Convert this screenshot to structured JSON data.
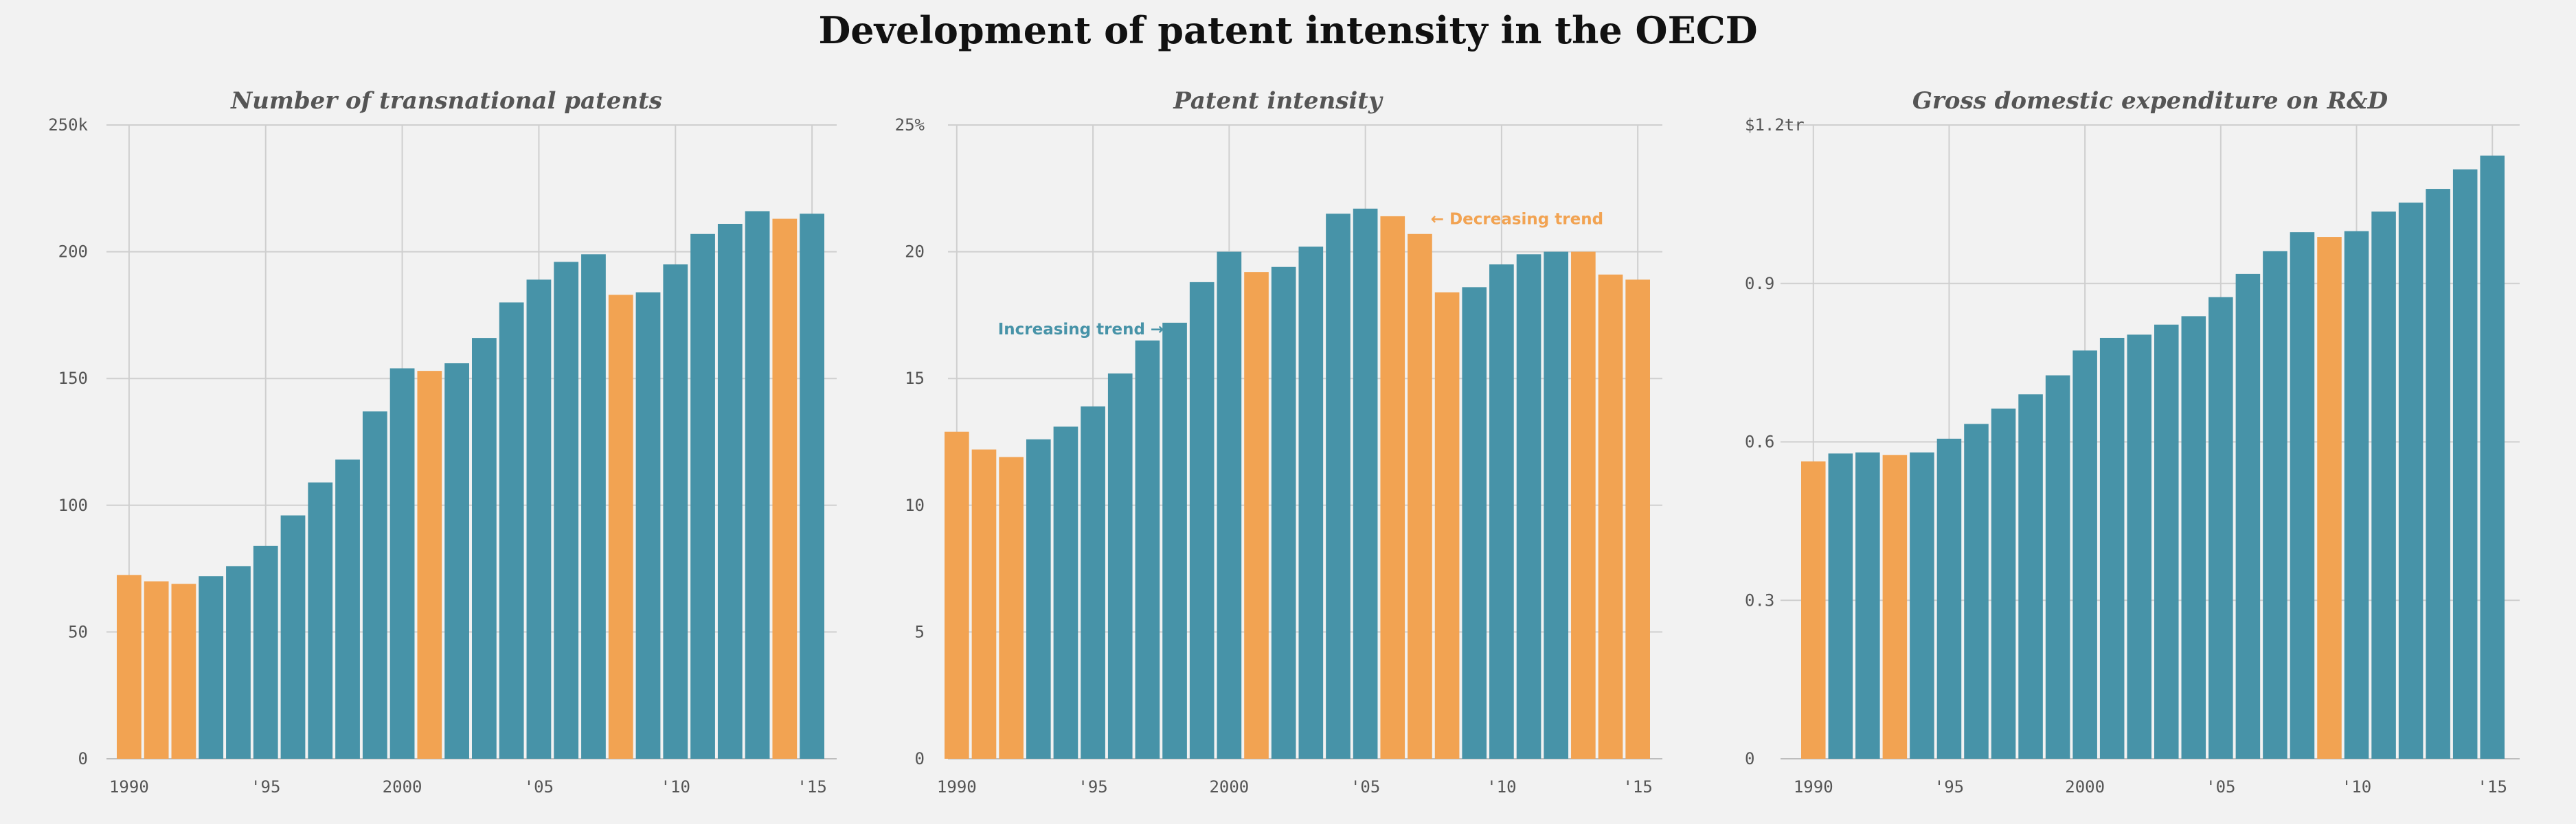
{
  "page": {
    "title": "Development of patent intensity in the OECD"
  },
  "colors": {
    "background": "#f2f2f2",
    "increase": "#4793a8",
    "decrease": "#f2a352",
    "grid": "#cfcfcf",
    "text": "#555555"
  },
  "chart_data": [
    {
      "type": "bar",
      "title": "Number of transnational patents",
      "x": [
        1990,
        1991,
        1992,
        1993,
        1994,
        1995,
        1996,
        1997,
        1998,
        1999,
        2000,
        2001,
        2002,
        2003,
        2004,
        2005,
        2006,
        2007,
        2008,
        2009,
        2010,
        2011,
        2012,
        2013,
        2014,
        2015
      ],
      "values": [
        72.5,
        70,
        69,
        72,
        76,
        84,
        96,
        109,
        118,
        137,
        154,
        153,
        156,
        166,
        180,
        189,
        196,
        199,
        183,
        184,
        195,
        207,
        211,
        216,
        213,
        215
      ],
      "colors": [
        "decrease",
        "decrease",
        "decrease",
        "increase",
        "increase",
        "increase",
        "increase",
        "increase",
        "increase",
        "increase",
        "increase",
        "decrease",
        "increase",
        "increase",
        "increase",
        "increase",
        "increase",
        "increase",
        "decrease",
        "increase",
        "increase",
        "increase",
        "increase",
        "increase",
        "decrease",
        "increase"
      ],
      "ylim": [
        0,
        250
      ],
      "yticks": [
        0,
        50,
        100,
        150,
        200,
        250
      ],
      "ytick_labels": [
        "0",
        "50",
        "100",
        "150",
        "200",
        "250k"
      ],
      "xticks": [
        1990,
        1995,
        2000,
        2005,
        2010,
        2015
      ],
      "xtick_labels": [
        "1990",
        "'95",
        "2000",
        "'05",
        "'10",
        "'15"
      ],
      "grid": true,
      "annotations": []
    },
    {
      "type": "bar",
      "title": "Patent intensity",
      "x": [
        1990,
        1991,
        1992,
        1993,
        1994,
        1995,
        1996,
        1997,
        1998,
        1999,
        2000,
        2001,
        2002,
        2003,
        2004,
        2005,
        2006,
        2007,
        2008,
        2009,
        2010,
        2011,
        2012,
        2013,
        2014,
        2015
      ],
      "values": [
        12.9,
        12.2,
        11.9,
        12.6,
        13.1,
        13.9,
        15.2,
        16.5,
        17.2,
        18.8,
        20.0,
        19.2,
        19.4,
        20.2,
        21.5,
        21.7,
        21.4,
        20.7,
        18.4,
        18.6,
        19.5,
        19.9,
        20.0,
        20.0,
        19.1,
        18.9
      ],
      "colors": [
        "decrease",
        "decrease",
        "decrease",
        "increase",
        "increase",
        "increase",
        "increase",
        "increase",
        "increase",
        "increase",
        "increase",
        "decrease",
        "increase",
        "increase",
        "increase",
        "increase",
        "decrease",
        "decrease",
        "decrease",
        "increase",
        "increase",
        "increase",
        "increase",
        "decrease",
        "decrease",
        "decrease"
      ],
      "ylim": [
        0,
        25
      ],
      "yticks": [
        0,
        5,
        10,
        15,
        20,
        25
      ],
      "ytick_labels": [
        "0",
        "5",
        "10",
        "15",
        "20",
        "25%"
      ],
      "xticks": [
        1990,
        1995,
        2000,
        2005,
        2010,
        2015
      ],
      "xtick_labels": [
        "1990",
        "'95",
        "2000",
        "'05",
        "'10",
        "'15"
      ],
      "grid": true,
      "annotations": [
        {
          "text": "Increasing trend →",
          "x": 1997.6,
          "y": 16.95,
          "anchor": "end",
          "color": "increase"
        },
        {
          "text": "← Decreasing trend",
          "x": 2007.4,
          "y": 21.3,
          "anchor": "start",
          "color": "decrease"
        }
      ]
    },
    {
      "type": "bar",
      "title": "Gross domestic expenditure on R&D",
      "x": [
        1990,
        1991,
        1992,
        1993,
        1994,
        1995,
        1996,
        1997,
        1998,
        1999,
        2000,
        2001,
        2002,
        2003,
        2004,
        2005,
        2006,
        2007,
        2008,
        2009,
        2010,
        2011,
        2012,
        2013,
        2014,
        2015
      ],
      "values": [
        0.563,
        0.578,
        0.58,
        0.575,
        0.58,
        0.606,
        0.634,
        0.663,
        0.69,
        0.726,
        0.773,
        0.797,
        0.803,
        0.822,
        0.838,
        0.874,
        0.918,
        0.961,
        0.997,
        0.988,
        0.999,
        1.036,
        1.053,
        1.079,
        1.116,
        1.142
      ],
      "colors": [
        "decrease",
        "increase",
        "increase",
        "decrease",
        "increase",
        "increase",
        "increase",
        "increase",
        "increase",
        "increase",
        "increase",
        "increase",
        "increase",
        "increase",
        "increase",
        "increase",
        "increase",
        "increase",
        "increase",
        "decrease",
        "increase",
        "increase",
        "increase",
        "increase",
        "increase",
        "increase"
      ],
      "ylim": [
        0,
        1.2
      ],
      "yticks": [
        0,
        0.3,
        0.6,
        0.9,
        1.2
      ],
      "ytick_labels": [
        "0",
        "0.3",
        "0.6",
        "0.9",
        "$1.2tr"
      ],
      "xticks": [
        1990,
        1995,
        2000,
        2005,
        2010,
        2015
      ],
      "xtick_labels": [
        "1990",
        "'95",
        "2000",
        "'05",
        "'10",
        "'15"
      ],
      "grid": true,
      "annotations": []
    }
  ]
}
